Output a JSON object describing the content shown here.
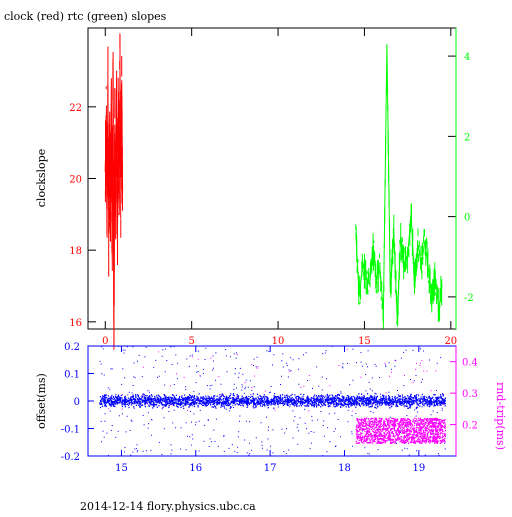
{
  "chart_data": [
    {
      "type": "line",
      "title": "clock (red) rtc (green) slopes",
      "ylabel": "clockslope",
      "ylabel_right": "",
      "xlim": [
        -1,
        20.3
      ],
      "ylim_left": [
        15.8,
        24.2
      ],
      "ylim_right": [
        -2.8,
        4.7
      ],
      "xticks": [
        0,
        5,
        10,
        15,
        20
      ],
      "yticks_left": [
        16,
        18,
        20,
        22
      ],
      "yticks_right": [
        -2,
        0,
        2,
        4
      ],
      "colors": {
        "clock": "#ff0000",
        "rtc": "#00ff00",
        "axes": "#000000"
      },
      "series": [
        {
          "axis": "left",
          "color": "#ff0000",
          "x": [
            0.0,
            0.05,
            0.1,
            0.15,
            0.2,
            0.25,
            0.3,
            0.35,
            0.4,
            0.45,
            0.5,
            0.55,
            0.6,
            0.65,
            0.7,
            0.75,
            0.8,
            0.85,
            0.9,
            0.95,
            1.0
          ],
          "values": [
            20.2,
            21.6,
            19.1,
            22.5,
            18.5,
            21.0,
            19.4,
            22.1,
            17.9,
            23.0,
            16.0,
            21.5,
            19.3,
            22.2,
            18.2,
            21.8,
            19.7,
            23.1,
            19.5,
            22.4,
            19.6
          ]
        },
        {
          "axis": "right",
          "color": "#00ff00",
          "x": [
            14.5,
            14.7,
            14.9,
            15.1,
            15.3,
            15.5,
            15.7,
            15.9,
            16.1,
            16.3,
            16.5,
            16.7,
            16.9,
            17.1,
            17.3,
            17.5,
            17.7,
            17.9,
            18.1,
            18.3,
            18.5,
            18.7,
            18.9,
            19.1,
            19.3,
            19.5
          ],
          "values": [
            -0.4,
            -2.0,
            -1.2,
            -1.5,
            -1.7,
            -0.8,
            -1.6,
            -1.3,
            -2.4,
            4.3,
            -1.9,
            -0.4,
            -2.6,
            -0.5,
            -1.2,
            -1.0,
            0.1,
            -1.6,
            -0.7,
            -1.2,
            -0.6,
            -1.3,
            -2.0,
            -1.5,
            -2.3,
            -1.7
          ]
        }
      ]
    },
    {
      "type": "scatter",
      "xlabel": "",
      "ylabel": "offset(ms)",
      "ylabel_right": "rnd-trip(ms)",
      "xlim": [
        14.55,
        19.5
      ],
      "ylim_left": [
        -0.2,
        0.2
      ],
      "ylim_right": [
        0.1,
        0.45
      ],
      "xticks": [
        15,
        16,
        17,
        18,
        19
      ],
      "yticks_left": [
        -0.2,
        -0.1,
        0,
        0.1,
        0.2
      ],
      "ytick_labels_left": [
        "-0.2",
        "-0.1",
        "0",
        "0.1",
        "0.2"
      ],
      "yticks_right": [
        0.2,
        0.3,
        0.4
      ],
      "colors": {
        "offset": "#0000ff",
        "rnd_trip": "#ff00ff",
        "axes": "#0000ff",
        "right_axis": "#ff00ff"
      },
      "series": [
        {
          "axis": "left",
          "color": "#0000ff",
          "x_range": [
            14.7,
            19.35
          ],
          "center": 0.0,
          "band_half_width": 0.03,
          "scatter_range": [
            -0.2,
            0.2
          ]
        },
        {
          "axis": "right",
          "color": "#ff00ff",
          "x_range": [
            18.15,
            19.35
          ],
          "value_range": [
            0.14,
            0.22
          ]
        }
      ]
    }
  ],
  "footer": "2014-12-14 flory.physics.ubc.ca"
}
